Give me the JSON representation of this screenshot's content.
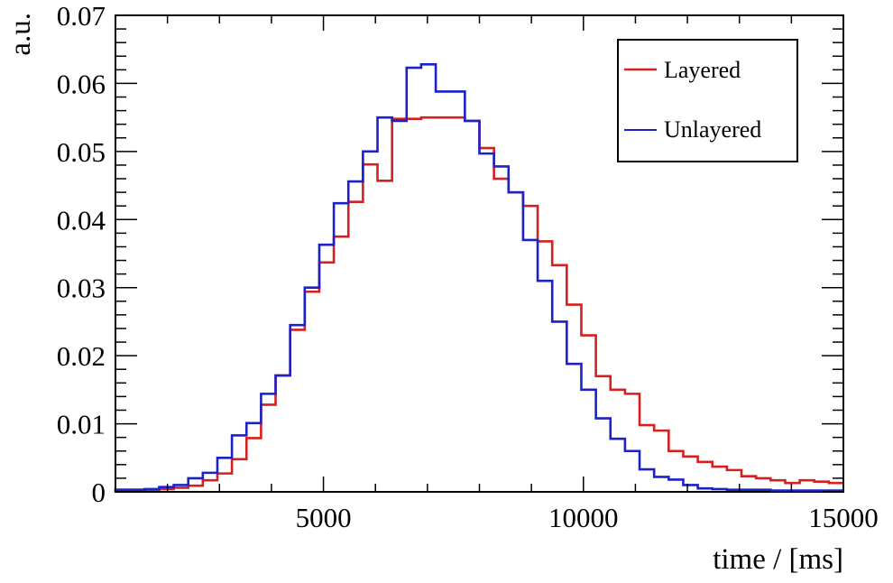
{
  "chart_data": {
    "type": "line",
    "style": "step-histogram",
    "title": "",
    "xlabel": "time / [ms]",
    "ylabel": "a.u.",
    "xlim": [
      1000,
      15000
    ],
    "ylim": [
      0,
      0.07
    ],
    "grid": false,
    "legend_position": "top-right",
    "x_ticks": [
      5000,
      10000,
      15000
    ],
    "x_tick_labels": [
      "5000",
      "10000",
      "15000"
    ],
    "y_ticks": [
      0,
      0.01,
      0.02,
      0.03,
      0.04,
      0.05,
      0.06,
      0.07
    ],
    "y_tick_labels": [
      "0",
      "0.01",
      "0.02",
      "0.03",
      "0.04",
      "0.05",
      "0.06",
      "0.07"
    ],
    "bin_edges": [
      1000,
      1280,
      1560,
      1840,
      2120,
      2400,
      2680,
      2960,
      3240,
      3520,
      3800,
      4080,
      4360,
      4640,
      4920,
      5200,
      5480,
      5760,
      6040,
      6320,
      6600,
      6880,
      7160,
      7440,
      7720,
      8000,
      8280,
      8560,
      8840,
      9120,
      9400,
      9680,
      9960,
      10240,
      10520,
      10800,
      11080,
      11360,
      11640,
      11920,
      12200,
      12480,
      12760,
      13040,
      13320,
      13600,
      13880,
      14160,
      14440,
      14720,
      15000
    ],
    "series": [
      {
        "name": "Layered",
        "color": "#d42020",
        "values": [
          0.0003,
          0.0003,
          0.0003,
          0.0004,
          0.0006,
          0.0009,
          0.0017,
          0.0027,
          0.0048,
          0.0079,
          0.0128,
          0.0171,
          0.0238,
          0.0294,
          0.0337,
          0.0375,
          0.0426,
          0.0481,
          0.0457,
          0.0548,
          0.0548,
          0.055,
          0.055,
          0.055,
          0.0545,
          0.0505,
          0.046,
          0.044,
          0.042,
          0.0368,
          0.0333,
          0.0275,
          0.023,
          0.017,
          0.015,
          0.0144,
          0.0098,
          0.009,
          0.006,
          0.0052,
          0.0044,
          0.0037,
          0.0032,
          0.0023,
          0.002,
          0.0017,
          0.0013,
          0.0017,
          0.0015,
          0.0013
        ]
      },
      {
        "name": "Unlayered",
        "color": "#1a22c8",
        "values": [
          0.0003,
          0.0003,
          0.0004,
          0.0007,
          0.001,
          0.002,
          0.0028,
          0.005,
          0.0083,
          0.0101,
          0.0144,
          0.0171,
          0.0245,
          0.03,
          0.0363,
          0.0424,
          0.0456,
          0.05,
          0.055,
          0.0545,
          0.0623,
          0.0628,
          0.0588,
          0.0588,
          0.0545,
          0.0497,
          0.0478,
          0.044,
          0.037,
          0.031,
          0.025,
          0.0188,
          0.015,
          0.0108,
          0.0078,
          0.006,
          0.0033,
          0.0022,
          0.0018,
          0.001,
          0.0005,
          0.0004,
          0.0003,
          0.0003,
          0.0003,
          0.0002,
          0.0002,
          0.0002,
          0.0002,
          0.0002
        ]
      }
    ]
  }
}
